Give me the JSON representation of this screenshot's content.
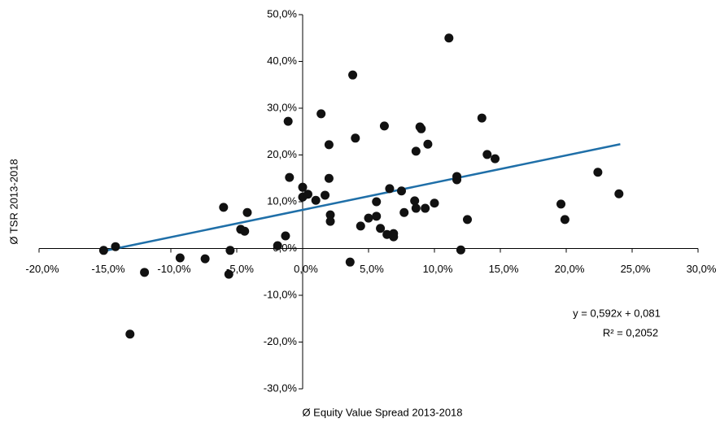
{
  "chart_data": {
    "type": "scatter",
    "x_label": "Ø Equity Value Spread 2013-2018",
    "y_label": "Ø TSR 2013-2018",
    "xlim": [
      -20,
      30
    ],
    "ylim": [
      -30,
      50
    ],
    "xticks": [
      {
        "value": -20,
        "label": "-20,0%"
      },
      {
        "value": -15,
        "label": "-15,0%"
      },
      {
        "value": -10,
        "label": "-10,0%"
      },
      {
        "value": -5,
        "label": "-5,0%"
      },
      {
        "value": 0,
        "label": "0,0%"
      },
      {
        "value": 5,
        "label": "5,0%"
      },
      {
        "value": 10,
        "label": "10,0%"
      },
      {
        "value": 15,
        "label": "15,0%"
      },
      {
        "value": 20,
        "label": "20,0%"
      },
      {
        "value": 25,
        "label": "25,0%"
      },
      {
        "value": 30,
        "label": "30,0%"
      }
    ],
    "yticks": [
      {
        "value": -30,
        "label": "-30,0%"
      },
      {
        "value": -20,
        "label": "-20,0%"
      },
      {
        "value": -10,
        "label": "-10,0%"
      },
      {
        "value": 0,
        "label": "0,0%"
      },
      {
        "value": 10,
        "label": "10,0%"
      },
      {
        "value": 20,
        "label": "20,0%"
      },
      {
        "value": 30,
        "label": "30,0%"
      },
      {
        "value": 40,
        "label": "40,0%"
      },
      {
        "value": 50,
        "label": "50,0%"
      }
    ],
    "color": "#111111",
    "x": [
      -15.1,
      -14.2,
      -12.0,
      -13.1,
      -9.3,
      -7.4,
      -6.0,
      -5.6,
      -5.5,
      -4.7,
      -4.4,
      -4.2,
      -1.9,
      -1.3,
      -1.1,
      -1.0,
      0.0,
      0.0,
      0.4,
      1.0,
      1.4,
      1.7,
      2.0,
      2.0,
      2.1,
      2.1,
      3.6,
      3.8,
      4.0,
      4.4,
      5.0,
      5.6,
      5.6,
      5.9,
      6.2,
      6.4,
      6.6,
      6.9,
      6.9,
      7.5,
      7.7,
      8.5,
      8.6,
      8.6,
      8.9,
      9.0,
      9.3,
      9.5,
      10.0,
      11.1,
      11.7,
      11.7,
      12.0,
      12.5,
      13.6,
      14.0,
      14.6,
      19.6,
      19.9,
      22.4,
      24.0
    ],
    "values": [
      -0.4,
      0.4,
      -5.1,
      -18.3,
      -2.0,
      -2.2,
      8.8,
      -5.5,
      -0.4,
      4.1,
      3.7,
      7.7,
      0.6,
      2.7,
      27.2,
      15.2,
      13.1,
      11.0,
      11.6,
      10.3,
      28.8,
      11.4,
      22.2,
      15.0,
      7.2,
      5.8,
      -2.9,
      37.1,
      23.6,
      4.8,
      6.5,
      10.0,
      6.9,
      4.3,
      26.2,
      3.0,
      12.8,
      3.2,
      2.5,
      12.3,
      7.7,
      10.2,
      8.6,
      20.8,
      26.0,
      25.6,
      8.6,
      22.3,
      9.7,
      45.0,
      14.7,
      15.4,
      -0.3,
      6.2,
      27.9,
      20.1,
      19.2,
      9.5,
      6.2,
      16.3,
      11.7
    ],
    "trendline": {
      "x": [
        -15.2,
        24.1
      ],
      "values": [
        -0.6,
        22.3
      ],
      "color": "#1f6fa8"
    },
    "annotations": [
      "y = 0,592x + 0,081",
      "R² = 0,2052"
    ]
  }
}
